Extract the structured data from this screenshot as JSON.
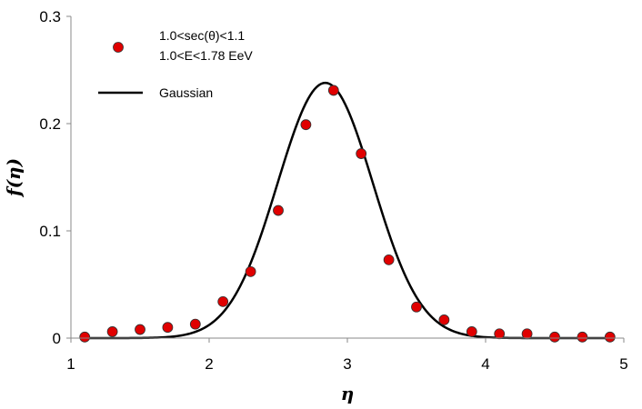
{
  "chart_data": {
    "type": "scatter",
    "xlabel": "η",
    "ylabel": "f(η)",
    "xlim": [
      1,
      5
    ],
    "ylim": [
      0,
      0.3
    ],
    "x_ticks": [
      "1",
      "2",
      "3",
      "4",
      "5"
    ],
    "y_ticks": [
      "0",
      "0.1",
      "0.2",
      "0.3"
    ],
    "grid": false,
    "legend_position": "top-left",
    "series": [
      {
        "name": "1.0<sec(θ)<1.1",
        "name_line2": "1.0<E<1.78 EeV",
        "kind": "scatter",
        "color": "#e00000",
        "x": [
          1.1,
          1.3,
          1.5,
          1.7,
          1.9,
          2.1,
          2.3,
          2.5,
          2.7,
          2.9,
          3.1,
          3.3,
          3.5,
          3.7,
          3.9,
          4.1,
          4.3,
          4.5,
          4.7,
          4.9
        ],
        "y": [
          0.001,
          0.006,
          0.008,
          0.01,
          0.013,
          0.034,
          0.062,
          0.119,
          0.199,
          0.231,
          0.172,
          0.073,
          0.029,
          0.017,
          0.006,
          0.004,
          0.004,
          0.001,
          0.001,
          0.001
        ]
      },
      {
        "name": "Gaussian",
        "kind": "line",
        "color": "#000000",
        "mean": 2.84,
        "sigma": 0.345,
        "peak": 0.238
      }
    ]
  }
}
